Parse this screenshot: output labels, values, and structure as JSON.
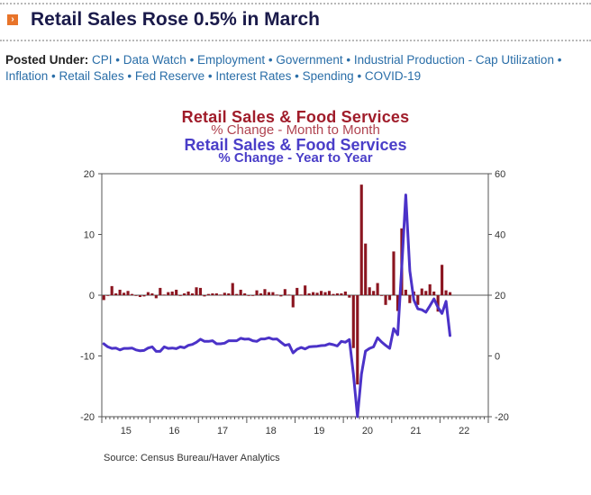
{
  "header": {
    "icon": "orange-arrow-bullet-icon",
    "title": "Retail Sales Rose 0.5% in March"
  },
  "posted_under": {
    "label": "Posted Under:",
    "tags": [
      "CPI",
      "Data Watch",
      "Employment",
      "Government",
      "Industrial Production - Cap Utilization",
      "Inflation",
      "Retail Sales",
      "Fed Reserve",
      "Interest Rates",
      "Spending",
      "COVID-19"
    ]
  },
  "colors": {
    "bar": "#8b1520",
    "line": "#4b32c8",
    "mom_title": "#a01c2a",
    "yoy_title": "#4a3ec8",
    "link": "#2a6ea8"
  },
  "chart_data": {
    "type": "bar+line",
    "title_mom": "Retail Sales & Food Services",
    "subtitle_mom": "% Change - Month to Month",
    "title_yoy": "Retail Sales & Food Services",
    "subtitle_yoy": "% Change - Year to Year",
    "source": "Source:  Census Bureau/Haver Analytics",
    "x_tick_labels": [
      "15",
      "16",
      "17",
      "18",
      "19",
      "20",
      "21",
      "22"
    ],
    "x_start": "2015-01",
    "x_end": "2022-12",
    "left_axis": {
      "range": [
        -20,
        20
      ],
      "ticks": [
        20,
        10,
        0,
        -10,
        -20
      ],
      "series": "Month to Month % (bars)"
    },
    "right_axis": {
      "range": [
        -20,
        60
      ],
      "ticks": [
        60,
        40,
        20,
        0,
        -20
      ],
      "series": "Year to Year % (line)"
    },
    "series": [
      {
        "name": "% Change - Month to Month",
        "type": "bar",
        "axis": "left",
        "start": "2015-01",
        "values": [
          -0.8,
          -0.1,
          1.5,
          0.3,
          0.9,
          0.4,
          0.7,
          0.2,
          0.0,
          -0.3,
          -0.2,
          0.5,
          0.3,
          -0.5,
          1.2,
          0.1,
          0.5,
          0.6,
          0.9,
          -0.1,
          0.3,
          0.6,
          0.3,
          1.3,
          1.2,
          -0.2,
          0.2,
          0.3,
          0.3,
          0.1,
          0.4,
          0.3,
          2.0,
          0.2,
          0.9,
          0.3,
          -0.1,
          0.0,
          0.8,
          0.3,
          1.0,
          0.5,
          0.5,
          0.1,
          -0.2,
          1.0,
          0.1,
          -2.0,
          1.2,
          0.1,
          1.6,
          0.3,
          0.5,
          0.4,
          0.7,
          0.5,
          0.7,
          0.2,
          0.3,
          0.3,
          0.6,
          -0.4,
          -8.7,
          -14.7,
          18.2,
          8.5,
          1.3,
          0.7,
          2.0,
          0.0,
          -1.6,
          -0.8,
          7.2,
          -2.6,
          11.0,
          0.9,
          -1.3,
          0.6,
          -1.6,
          1.1,
          0.7,
          1.8,
          0.6,
          -2.7,
          5.0,
          0.8,
          0.5
        ]
      },
      {
        "name": "% Change - Year to Year",
        "type": "line",
        "axis": "right",
        "start": "2015-01",
        "values": [
          4.0,
          3.0,
          2.5,
          2.6,
          2.0,
          2.5,
          2.5,
          2.6,
          2.0,
          1.7,
          1.8,
          2.6,
          3.0,
          1.5,
          1.5,
          3.0,
          2.5,
          2.6,
          2.4,
          3.0,
          2.7,
          3.5,
          3.8,
          4.5,
          5.5,
          4.8,
          4.8,
          5.0,
          4.0,
          4.0,
          4.2,
          5.0,
          5.0,
          5.0,
          5.8,
          5.5,
          5.6,
          5.0,
          4.8,
          5.6,
          5.6,
          6.0,
          5.5,
          5.6,
          4.5,
          3.5,
          3.8,
          1.0,
          2.2,
          2.8,
          2.3,
          3.0,
          3.1,
          3.2,
          3.4,
          3.5,
          4.0,
          3.7,
          3.3,
          4.8,
          4.5,
          5.4,
          -6.0,
          -20.0,
          -6.0,
          1.6,
          2.5,
          3.0,
          6.0,
          4.6,
          3.5,
          2.5,
          9.0,
          7.0,
          29.0,
          53.0,
          28.0,
          18.5,
          15.5,
          15.2,
          14.4,
          16.5,
          18.8,
          16.0,
          14.0,
          18.0,
          6.7
        ]
      }
    ]
  }
}
